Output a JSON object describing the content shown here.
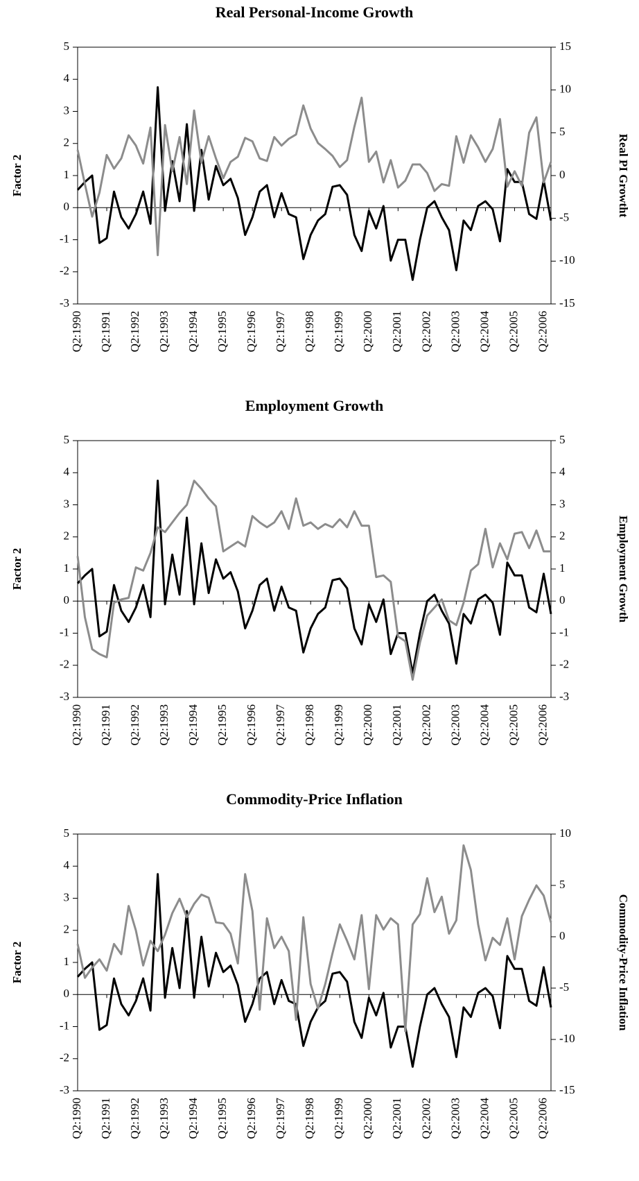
{
  "chart_data": [
    {
      "type": "line",
      "title": "Real Personal-Income Growth",
      "y_label": "Factor 2",
      "y2_label": "Real PI Growtht",
      "categories": [
        "Q2:1990",
        null,
        null,
        null,
        "Q2:1991",
        null,
        null,
        null,
        "Q2:1992",
        null,
        null,
        null,
        "Q2:1993",
        null,
        null,
        null,
        "Q2:1994",
        null,
        null,
        null,
        "Q2:1995",
        null,
        null,
        null,
        "Q2:1996",
        null,
        null,
        null,
        "Q2:1997",
        null,
        null,
        null,
        "Q2:1998",
        null,
        null,
        null,
        "Q2:1999",
        null,
        null,
        null,
        "Q2:2000",
        null,
        null,
        null,
        "Q2:2001",
        null,
        null,
        null,
        "Q2:2002",
        null,
        null,
        null,
        "Q2:2003",
        null,
        null,
        null,
        "Q2:2004",
        null,
        null,
        null,
        "Q2:2005",
        null,
        null,
        null,
        "Q2:2006",
        null
      ],
      "ylim": [
        -3,
        5
      ],
      "yticks": [
        -3,
        -2,
        -1,
        0,
        1,
        2,
        3,
        4,
        5
      ],
      "y2lim": [
        -15,
        15
      ],
      "y2ticks": [
        -15,
        -10,
        -5,
        0,
        5,
        10,
        15
      ],
      "series": [
        {
          "color": "#000000",
          "values": [
            0.55,
            0.8,
            1.0,
            -1.1,
            -0.95,
            0.5,
            -0.3,
            -0.65,
            -0.2,
            0.5,
            -0.5,
            3.75,
            -0.1,
            1.45,
            0.2,
            2.6,
            -0.1,
            1.8,
            0.25,
            1.3,
            0.7,
            0.9,
            0.3,
            -0.85,
            -0.3,
            0.5,
            0.7,
            -0.3,
            0.45,
            -0.2,
            -0.3,
            -1.6,
            -0.85,
            -0.4,
            -0.2,
            0.65,
            0.7,
            0.4,
            -0.85,
            -1.35,
            -0.1,
            -0.65,
            0.05,
            -1.65,
            -1.0,
            -1.0,
            -2.25,
            -1.0,
            0.0,
            0.2,
            -0.3,
            -0.7,
            -1.95,
            -0.4,
            -0.7,
            0.05,
            0.2,
            -0.05,
            -1.05,
            1.2,
            0.8,
            0.8,
            -0.2,
            -0.35,
            0.85,
            -0.4
          ]
        },
        {
          "color": "#8c8c8c",
          "axis": "y2",
          "values": [
            3,
            -1,
            -4.8,
            -2,
            2.4,
            0.8,
            2,
            4.7,
            3.5,
            1.4,
            5.6,
            -9.3,
            5.9,
            0.5,
            4.5,
            -1,
            7.6,
            1.5,
            4.6,
            2,
            -0.3,
            1.6,
            2.2,
            4.4,
            4,
            2,
            1.7,
            4.5,
            3.5,
            4.3,
            4.8,
            8.2,
            5.5,
            3.8,
            3.1,
            2.3,
            1,
            1.8,
            5.7,
            9.1,
            1.6,
            2.8,
            -0.8,
            1.8,
            -1.4,
            -0.6,
            1.3,
            1.3,
            0.3,
            -1.8,
            -1,
            -1.2,
            4.6,
            1.5,
            4.7,
            3.3,
            1.6,
            3.1,
            6.6,
            -1.3,
            0.5,
            -1.2,
            5,
            6.8,
            -0.8,
            1.6
          ]
        }
      ]
    },
    {
      "type": "line",
      "title": "Employment Growth",
      "y_label": "Factor 2",
      "y2_label": "Employment Growth",
      "categories": [
        "Q2:1990",
        null,
        null,
        null,
        "Q2:1991",
        null,
        null,
        null,
        "Q2:1992",
        null,
        null,
        null,
        "Q2:1993",
        null,
        null,
        null,
        "Q2:1994",
        null,
        null,
        null,
        "Q2:1995",
        null,
        null,
        null,
        "Q2:1996",
        null,
        null,
        null,
        "Q2:1997",
        null,
        null,
        null,
        "Q2:1998",
        null,
        null,
        null,
        "Q2:1999",
        null,
        null,
        null,
        "Q2:2000",
        null,
        null,
        null,
        "Q2:2001",
        null,
        null,
        null,
        "Q2:2002",
        null,
        null,
        null,
        "Q2:2003",
        null,
        null,
        null,
        "Q2:2004",
        null,
        null,
        null,
        "Q2:2005",
        null,
        null,
        null,
        "Q2:2006",
        null
      ],
      "ylim": [
        -3,
        5
      ],
      "yticks": [
        -3,
        -2,
        -1,
        0,
        1,
        2,
        3,
        4,
        5
      ],
      "y2lim": [
        -3,
        5
      ],
      "y2ticks": [
        -3,
        -2,
        -1,
        0,
        1,
        2,
        3,
        4,
        5
      ],
      "series": [
        {
          "color": "#000000",
          "values": [
            0.55,
            0.8,
            1.0,
            -1.1,
            -0.95,
            0.5,
            -0.3,
            -0.65,
            -0.2,
            0.5,
            -0.5,
            3.75,
            -0.1,
            1.45,
            0.2,
            2.6,
            -0.1,
            1.8,
            0.25,
            1.3,
            0.7,
            0.9,
            0.3,
            -0.85,
            -0.3,
            0.5,
            0.7,
            -0.3,
            0.45,
            -0.2,
            -0.3,
            -1.6,
            -0.85,
            -0.4,
            -0.2,
            0.65,
            0.7,
            0.4,
            -0.85,
            -1.35,
            -0.1,
            -0.65,
            0.05,
            -1.65,
            -1.0,
            -1.0,
            -2.25,
            -1.0,
            0.0,
            0.2,
            -0.3,
            -0.7,
            -1.95,
            -0.4,
            -0.7,
            0.05,
            0.2,
            -0.05,
            -1.05,
            1.2,
            0.8,
            0.8,
            -0.2,
            -0.35,
            0.85,
            -0.4
          ]
        },
        {
          "color": "#8c8c8c",
          "axis": "y2",
          "values": [
            1.4,
            -0.5,
            -1.5,
            -1.65,
            -1.75,
            -0.05,
            0.05,
            0.1,
            1.05,
            0.95,
            1.5,
            2.3,
            2.15,
            2.45,
            2.75,
            3.0,
            3.75,
            3.5,
            3.2,
            2.95,
            1.55,
            1.7,
            1.85,
            1.7,
            2.65,
            2.45,
            2.3,
            2.45,
            2.8,
            2.25,
            3.2,
            2.35,
            2.45,
            2.25,
            2.4,
            2.3,
            2.55,
            2.3,
            2.8,
            2.35,
            2.35,
            0.75,
            0.8,
            0.6,
            -1.1,
            -1.25,
            -2.45,
            -1.3,
            -0.45,
            -0.2,
            0.05,
            -0.6,
            -0.75,
            -0.05,
            0.95,
            1.15,
            2.25,
            1.05,
            1.8,
            1.3,
            2.1,
            2.15,
            1.65,
            2.2,
            1.55,
            1.55
          ]
        }
      ]
    },
    {
      "type": "line",
      "title": "Commodity-Price Inflation",
      "y_label": "Factor 2",
      "y2_label": "Commodity-Price Inflation",
      "categories": [
        "Q2:1990",
        null,
        null,
        null,
        "Q2:1991",
        null,
        null,
        null,
        "Q2:1992",
        null,
        null,
        null,
        "Q2:1993",
        null,
        null,
        null,
        "Q2:1994",
        null,
        null,
        null,
        "Q2:1995",
        null,
        null,
        null,
        "Q2:1996",
        null,
        null,
        null,
        "Q2:1997",
        null,
        null,
        null,
        "Q2:1998",
        null,
        null,
        null,
        "Q2:1999",
        null,
        null,
        null,
        "Q2:2000",
        null,
        null,
        null,
        "Q2:2001",
        null,
        null,
        null,
        "Q2:2002",
        null,
        null,
        null,
        "Q2:2003",
        null,
        null,
        null,
        "Q2:2004",
        null,
        null,
        null,
        "Q2:2005",
        null,
        null,
        null,
        "Q2:2006",
        null
      ],
      "ylim": [
        -3,
        5
      ],
      "yticks": [
        -3,
        -2,
        -1,
        0,
        1,
        2,
        3,
        4,
        5
      ],
      "y2lim": [
        -15,
        10
      ],
      "y2ticks": [
        -15,
        -10,
        -5,
        0,
        5,
        10
      ],
      "series": [
        {
          "color": "#000000",
          "values": [
            0.55,
            0.8,
            1.0,
            -1.1,
            -0.95,
            0.5,
            -0.3,
            -0.65,
            -0.2,
            0.5,
            -0.5,
            3.75,
            -0.1,
            1.45,
            0.2,
            2.6,
            -0.1,
            1.8,
            0.25,
            1.3,
            0.7,
            0.9,
            0.3,
            -0.85,
            -0.3,
            0.5,
            0.7,
            -0.3,
            0.45,
            -0.2,
            -0.3,
            -1.6,
            -0.85,
            -0.4,
            -0.2,
            0.65,
            0.7,
            0.4,
            -0.85,
            -1.35,
            -0.1,
            -0.65,
            0.05,
            -1.65,
            -1.0,
            -1.0,
            -2.25,
            -1.0,
            0.0,
            0.2,
            -0.3,
            -0.7,
            -1.95,
            -0.4,
            -0.7,
            0.05,
            0.2,
            -0.05,
            -1.05,
            1.2,
            0.8,
            0.8,
            -0.2,
            -0.35,
            0.85,
            -0.4
          ]
        },
        {
          "color": "#8c8c8c",
          "axis": "y2",
          "values": [
            -0.7,
            -4,
            -3,
            -2.2,
            -3.3,
            -0.7,
            -1.7,
            3,
            0.6,
            -2.8,
            -0.4,
            -1.4,
            0.2,
            2.3,
            3.7,
            1.9,
            3.2,
            4.1,
            3.8,
            1.4,
            1.3,
            0.3,
            -2.6,
            6.1,
            2.5,
            -7.1,
            1.8,
            -1.1,
            0,
            -1.4,
            -8.1,
            1.9,
            -4.6,
            -7,
            -4.6,
            -1.6,
            1.2,
            -0.4,
            -2.2,
            2.1,
            -5.1,
            2.1,
            0.7,
            1.8,
            1.2,
            -9.2,
            1.2,
            2.2,
            5.7,
            2.4,
            3.9,
            0.3,
            1.6,
            8.9,
            6.5,
            1.2,
            -2.3,
            -0.1,
            -0.8,
            1.8,
            -2.2,
            2,
            3.6,
            5,
            4,
            1.4
          ]
        }
      ]
    }
  ]
}
